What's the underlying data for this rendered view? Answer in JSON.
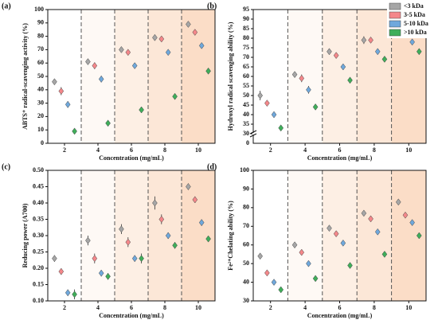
{
  "chart_data": [
    {
      "type": "scatter",
      "title": "(a)",
      "x_label": "Concentration (mg/mL)",
      "y_label": "ABTS⁺ radical-scavenging activity (%)",
      "categories": [
        "2",
        "4",
        "6",
        "8",
        "10"
      ],
      "ylim": [
        0,
        100
      ],
      "yticks": [
        0,
        10,
        20,
        30,
        40,
        50,
        60,
        70,
        80,
        90,
        100
      ],
      "series": [
        {
          "name": "<3 kDa",
          "color": "#a6a6a6",
          "values": [
            46,
            61,
            70,
            79,
            89
          ],
          "errors": [
            1.5,
            2,
            1.5,
            1.5,
            1.5
          ]
        },
        {
          "name": "3-5 kDa",
          "color": "#f4878a",
          "values": [
            39,
            58,
            68,
            78,
            83
          ],
          "errors": [
            3,
            2.5,
            1.5,
            1.5,
            1.5
          ]
        },
        {
          "name": "5-10 kDa",
          "color": "#6fa8dc",
          "values": [
            29,
            48,
            58,
            68,
            73
          ],
          "errors": [
            2.5,
            2.5,
            1.5,
            1.5,
            1.5
          ]
        },
        {
          "name": ">10 kDa",
          "color": "#3fae5a",
          "values": [
            9,
            15,
            25,
            35,
            54
          ],
          "errors": [
            1.5,
            1,
            2,
            1,
            2
          ]
        }
      ]
    },
    {
      "type": "scatter",
      "title": "(b)",
      "x_label": "Concentration (mg/mL)",
      "y_label": "Hydroxyl radical scavenging ability (%)",
      "categories": [
        "2",
        "4",
        "6",
        "8",
        "10"
      ],
      "axis_break_label": "0",
      "ylim": [
        25,
        95
      ],
      "yticks": [
        30,
        35,
        40,
        45,
        50,
        55,
        60,
        65,
        70,
        75,
        80,
        85,
        90,
        95
      ],
      "series": [
        {
          "color": "#a6a6a6",
          "values": [
            50,
            61,
            73,
            79,
            86
          ],
          "errors": [
            2.5,
            1.5,
            1.5,
            2,
            1.5
          ]
        },
        {
          "color": "#f4878a",
          "values": [
            46,
            59,
            71,
            79,
            84
          ],
          "errors": [
            1.5,
            2,
            1.5,
            1.5,
            1.5
          ]
        },
        {
          "color": "#6fa8dc",
          "values": [
            40,
            53,
            65,
            73,
            78
          ],
          "errors": [
            1.5,
            2,
            1.5,
            1.5,
            1.5
          ]
        },
        {
          "color": "#3fae5a",
          "values": [
            33,
            44,
            58,
            69,
            73
          ],
          "errors": [
            1,
            1.5,
            1.5,
            1.5,
            1.5
          ]
        }
      ]
    },
    {
      "type": "scatter",
      "title": "(c)",
      "x_label": "Concentration (mg/mL)",
      "y_label": "Reducing power (A700)",
      "categories": [
        "2",
        "4",
        "6",
        "8",
        "10"
      ],
      "ylim": [
        0.1,
        0.5
      ],
      "yticks": [
        {
          "value": 0.1,
          "label": "0.10"
        },
        {
          "value": 0.15,
          "label": "0.15"
        },
        {
          "value": 0.2,
          "label": "0.20"
        },
        {
          "value": 0.25,
          "label": "0.25"
        },
        {
          "value": 0.3,
          "label": "0.30"
        },
        {
          "value": 0.35,
          "label": "0.35"
        },
        {
          "value": 0.4,
          "label": "0.40"
        },
        {
          "value": 0.45,
          "label": "0.45"
        },
        {
          "value": 0.5,
          "label": "0.50"
        }
      ],
      "series": [
        {
          "color": "#a6a6a6",
          "values": [
            0.23,
            0.285,
            0.32,
            0.4,
            0.45
          ],
          "errors": [
            0.01,
            0.015,
            0.015,
            0.02,
            0.01
          ]
        },
        {
          "color": "#f4878a",
          "values": [
            0.19,
            0.23,
            0.28,
            0.35,
            0.41
          ],
          "errors": [
            0.01,
            0.015,
            0.015,
            0.015,
            0.01
          ]
        },
        {
          "color": "#6fa8dc",
          "values": [
            0.125,
            0.185,
            0.23,
            0.3,
            0.34
          ],
          "errors": [
            0.01,
            0.01,
            0.01,
            0.01,
            0.01
          ]
        },
        {
          "color": "#3fae5a",
          "values": [
            0.12,
            0.175,
            0.23,
            0.27,
            0.29
          ],
          "errors": [
            0.015,
            0.01,
            0.015,
            0.01,
            0.005
          ]
        }
      ]
    },
    {
      "type": "scatter",
      "title": "(d)",
      "x_label": "Concentration (mg/mL)",
      "y_label": "Fe²⁺Chelating ability (%)",
      "categories": [
        "2",
        "4",
        "6",
        "8",
        "10"
      ],
      "ylim": [
        30,
        100
      ],
      "yticks": [
        30,
        40,
        50,
        60,
        70,
        80,
        90,
        100
      ],
      "series": [
        {
          "color": "#a6a6a6",
          "values": [
            54,
            60,
            69,
            77,
            83
          ],
          "errors": [
            0.5,
            0.5,
            1,
            0.5,
            0.5
          ]
        },
        {
          "color": "#f4878a",
          "values": [
            45,
            56,
            66,
            74,
            76
          ],
          "errors": [
            0.5,
            0.5,
            0.5,
            1,
            0.5
          ]
        },
        {
          "color": "#6fa8dc",
          "values": [
            40,
            50,
            61,
            67,
            72
          ],
          "errors": [
            0.5,
            1,
            1,
            0.5,
            0.5
          ]
        },
        {
          "color": "#3fae5a",
          "values": [
            36,
            42,
            49,
            55,
            65
          ],
          "errors": [
            0.5,
            0.5,
            0.5,
            1,
            1
          ]
        }
      ]
    }
  ]
}
